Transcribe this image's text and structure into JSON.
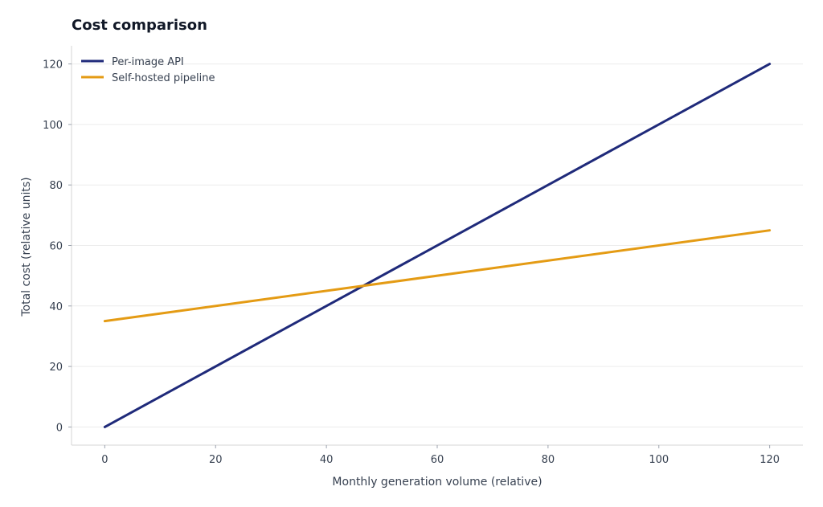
{
  "chart_data": {
    "type": "line",
    "title": "Cost comparison",
    "xlabel": "Monthly generation volume (relative)",
    "ylabel": "Total cost (relative units)",
    "xlim": [
      -6,
      126
    ],
    "ylim": [
      -6,
      126
    ],
    "xticks": [
      0,
      20,
      40,
      60,
      80,
      100,
      120
    ],
    "yticks": [
      0,
      20,
      40,
      60,
      80,
      100,
      120
    ],
    "grid": "horizontal",
    "legend_position": "top-left",
    "series": [
      {
        "name": "Per-image API",
        "color": "#1f2a7a",
        "x": [
          0,
          120
        ],
        "y": [
          0,
          120
        ]
      },
      {
        "name": "Self-hosted pipeline",
        "color": "#e49b14",
        "x": [
          0,
          120
        ],
        "y": [
          35,
          65
        ]
      }
    ]
  }
}
